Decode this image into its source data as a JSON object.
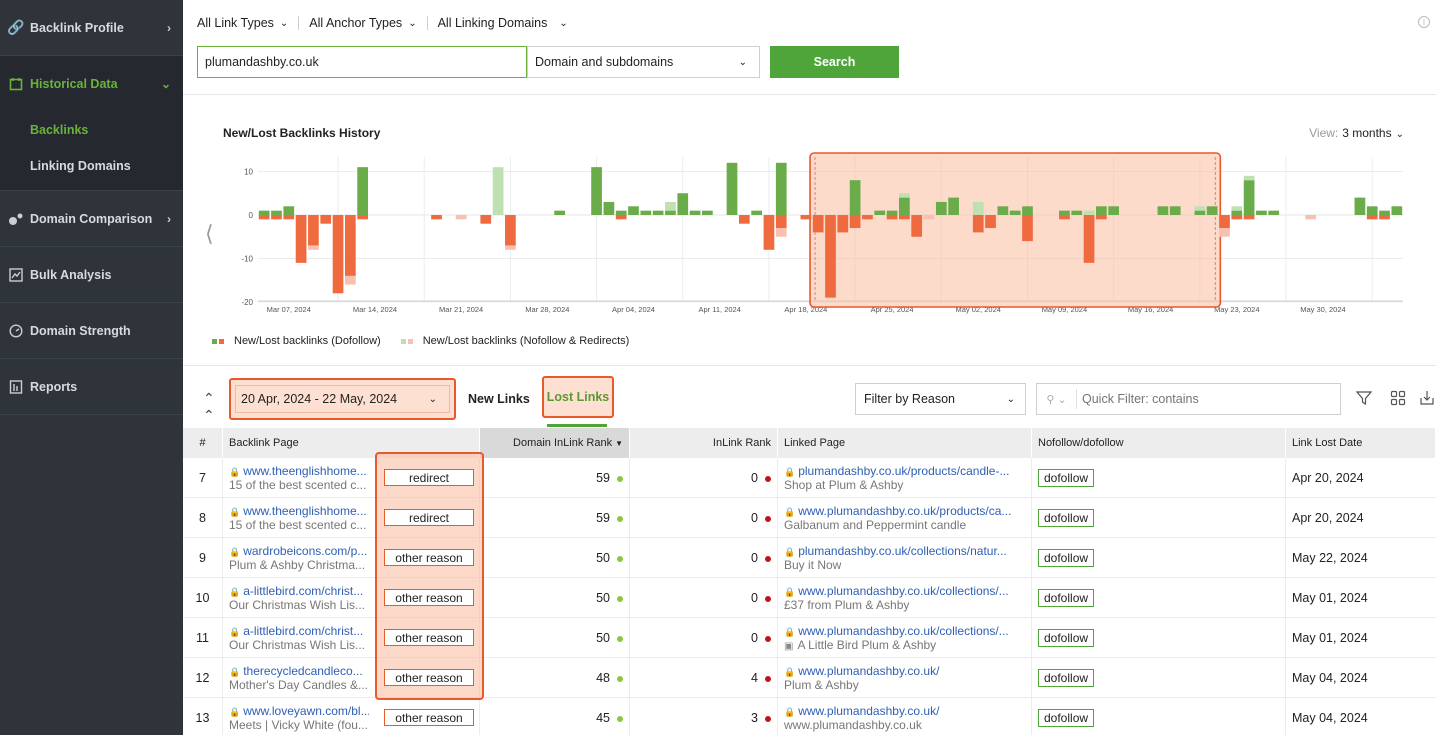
{
  "sidebar": {
    "items": [
      {
        "label": "Backlink Profile",
        "icon": "link-icon"
      },
      {
        "label": "Historical Data",
        "icon": "calendar-icon"
      },
      {
        "label": "Domain Comparison",
        "icon": "compare-icon"
      },
      {
        "label": "Bulk Analysis",
        "icon": "bulk-icon"
      },
      {
        "label": "Domain Strength",
        "icon": "gauge-icon"
      },
      {
        "label": "Reports",
        "icon": "report-icon"
      }
    ],
    "sub_items": [
      "Backlinks",
      "Linking Domains"
    ]
  },
  "filters": {
    "link_types": "All Link Types",
    "anchor_types": "All Anchor Types",
    "linking_domains": "All Linking Domains"
  },
  "search": {
    "domain": "plumandashby.co.uk",
    "scope": "Domain and subdomains",
    "button": "Search"
  },
  "chart_panel": {
    "title": "New/Lost Backlinks History",
    "view_label": "View:",
    "view_value": "3 months",
    "legend_dofollow": "New/Lost backlinks (Dofollow)",
    "legend_nofollow": "New/Lost backlinks (Nofollow & Redirects)"
  },
  "chart_data": {
    "type": "bar",
    "x_tick_labels": [
      "Mar 07, 2024",
      "Mar 14, 2024",
      "Mar 21, 2024",
      "Mar 28, 2024",
      "Apr 04, 2024",
      "Apr 11, 2024",
      "Apr 18, 2024",
      "Apr 25, 2024",
      "May 02, 2024",
      "May 09, 2024",
      "May 16, 2024",
      "May 23, 2024",
      "May 30, 2024"
    ],
    "y_ticks": [
      10,
      0,
      -10,
      -20
    ],
    "ylim": [
      -20,
      12
    ],
    "selection_start": "Apr 20, 2024",
    "selection_end": "May 22, 2024",
    "series": [
      {
        "name": "New/Lost backlinks (Dofollow)",
        "new_color": "#6aab4a",
        "lost_color": "#f06a3f"
      },
      {
        "name": "New/Lost backlinks (Nofollow & Redirects)",
        "new_color": "#bfe0b0",
        "lost_color": "#f8c0ae"
      }
    ],
    "days": [
      [
        1,
        -1,
        0,
        0
      ],
      [
        1,
        -1,
        0,
        0
      ],
      [
        2,
        -1,
        0,
        0
      ],
      [
        0,
        -11,
        0,
        0
      ],
      [
        0,
        -7,
        0,
        -1
      ],
      [
        0,
        -2,
        0,
        0
      ],
      [
        0,
        -18,
        0,
        0
      ],
      [
        0,
        -14,
        0,
        -2
      ],
      [
        11,
        -1,
        0,
        0
      ],
      [
        0,
        0,
        0,
        0
      ],
      [
        0,
        0,
        0,
        0
      ],
      [
        0,
        0,
        0,
        0
      ],
      [
        0,
        0,
        0,
        0
      ],
      [
        0,
        0,
        0,
        0
      ],
      [
        0,
        -1,
        0,
        0
      ],
      [
        0,
        0,
        0,
        0
      ],
      [
        0,
        0,
        0,
        -1
      ],
      [
        0,
        0,
        0,
        0
      ],
      [
        0,
        -2,
        0,
        0
      ],
      [
        0,
        0,
        11,
        0
      ],
      [
        0,
        -7,
        0,
        -1
      ],
      [
        0,
        0,
        0,
        0
      ],
      [
        0,
        0,
        0,
        0
      ],
      [
        0,
        0,
        0,
        0
      ],
      [
        1,
        0,
        0,
        0
      ],
      [
        0,
        0,
        0,
        0
      ],
      [
        0,
        0,
        0,
        0
      ],
      [
        11,
        0,
        0,
        0
      ],
      [
        3,
        0,
        0,
        0
      ],
      [
        1,
        -1,
        0,
        0
      ],
      [
        2,
        0,
        0,
        0
      ],
      [
        1,
        0,
        0,
        0
      ],
      [
        1,
        0,
        0,
        0
      ],
      [
        1,
        0,
        2,
        0
      ],
      [
        5,
        0,
        0,
        0
      ],
      [
        1,
        0,
        0,
        0
      ],
      [
        1,
        0,
        0,
        0
      ],
      [
        0,
        0,
        0,
        0
      ],
      [
        12,
        0,
        0,
        0
      ],
      [
        0,
        -2,
        0,
        0
      ],
      [
        1,
        0,
        0,
        0
      ],
      [
        0,
        -8,
        0,
        0
      ],
      [
        12,
        -3,
        0,
        -2
      ],
      [
        0,
        0,
        0,
        0
      ],
      [
        0,
        -1,
        0,
        0
      ],
      [
        0,
        -4,
        0,
        0
      ],
      [
        0,
        -19,
        0,
        0
      ],
      [
        0,
        -4,
        0,
        0
      ],
      [
        8,
        -3,
        0,
        0
      ],
      [
        0,
        -1,
        0,
        0
      ],
      [
        1,
        0,
        0,
        0
      ],
      [
        1,
        -1,
        0,
        0
      ],
      [
        4,
        -1,
        1,
        0
      ],
      [
        0,
        -5,
        0,
        0
      ],
      [
        0,
        0,
        0,
        -1
      ],
      [
        3,
        0,
        0,
        0
      ],
      [
        4,
        0,
        0,
        0
      ],
      [
        0,
        0,
        0,
        0
      ],
      [
        0,
        -4,
        3,
        0
      ],
      [
        0,
        -3,
        0,
        0
      ],
      [
        2,
        0,
        0,
        0
      ],
      [
        1,
        0,
        0,
        0
      ],
      [
        2,
        -6,
        0,
        0
      ],
      [
        0,
        0,
        0,
        0
      ],
      [
        0,
        0,
        0,
        0
      ],
      [
        1,
        -1,
        0,
        0
      ],
      [
        1,
        0,
        0,
        0
      ],
      [
        0,
        -11,
        1,
        0
      ],
      [
        2,
        -1,
        0,
        0
      ],
      [
        2,
        0,
        0,
        0
      ],
      [
        0,
        0,
        0,
        0
      ],
      [
        0,
        0,
        0,
        0
      ],
      [
        0,
        0,
        0,
        0
      ],
      [
        2,
        0,
        0,
        0
      ],
      [
        2,
        0,
        0,
        0
      ],
      [
        0,
        0,
        0,
        0
      ],
      [
        1,
        0,
        1,
        0
      ],
      [
        2,
        0,
        0,
        0
      ],
      [
        0,
        -3,
        0,
        -2
      ],
      [
        1,
        -1,
        1,
        0
      ],
      [
        8,
        -1,
        1,
        0
      ],
      [
        1,
        0,
        0,
        0
      ],
      [
        1,
        0,
        0,
        0
      ],
      [
        0,
        0,
        0,
        0
      ],
      [
        0,
        0,
        0,
        0
      ],
      [
        0,
        0,
        0,
        -1
      ],
      [
        0,
        0,
        0,
        0
      ],
      [
        0,
        0,
        0,
        0
      ],
      [
        0,
        0,
        0,
        0
      ],
      [
        4,
        0,
        0,
        0
      ],
      [
        2,
        -1,
        0,
        0
      ],
      [
        1,
        -1,
        0,
        0
      ],
      [
        2,
        0,
        0,
        0
      ]
    ]
  },
  "table_controls": {
    "date_range": "20 Apr, 2024 - 22 May, 2024",
    "tab_new": "New Links",
    "tab_lost": "Lost Links",
    "filter_reason": "Filter by Reason",
    "quick_filter_placeholder": "Quick Filter: contains"
  },
  "columns": {
    "num": "#",
    "backlink_page": "Backlink Page",
    "domain_inlink_rank": "Domain InLink Rank",
    "inlink_rank": "InLink Rank",
    "linked_page": "Linked Page",
    "nofollow": "Nofollow/dofollow",
    "lost_date": "Link Lost Date"
  },
  "status_colors": {
    "green": "#8cc63f",
    "red": "#c0161a"
  },
  "rows": [
    {
      "num": "7",
      "bl_url": "www.theenglishhome...",
      "bl_title": "15 of the best scented c...",
      "reason": "redirect",
      "dir": "59",
      "ir": "0",
      "lp_url": "plumandashby.co.uk/products/candle-...",
      "lp_sub": "Shop at Plum & Ashby",
      "lp_img": false,
      "follow": "dofollow",
      "date": "Apr 20, 2024"
    },
    {
      "num": "8",
      "bl_url": "www.theenglishhome...",
      "bl_title": "15 of the best scented c...",
      "reason": "redirect",
      "dir": "59",
      "ir": "0",
      "lp_url": "www.plumandashby.co.uk/products/ca...",
      "lp_sub": "Galbanum and Peppermint candle",
      "lp_img": false,
      "follow": "dofollow",
      "date": "Apr 20, 2024"
    },
    {
      "num": "9",
      "bl_url": "wardrobeicons.com/p...",
      "bl_title": "Plum & Ashby Christma...",
      "reason": "other reason",
      "dir": "50",
      "ir": "0",
      "lp_url": "plumandashby.co.uk/collections/natur...",
      "lp_sub": "Buy it Now",
      "lp_img": false,
      "follow": "dofollow",
      "date": "May 22, 2024"
    },
    {
      "num": "10",
      "bl_url": "a-littlebird.com/christ...",
      "bl_title": "Our Christmas Wish Lis...",
      "reason": "other reason",
      "dir": "50",
      "ir": "0",
      "lp_url": "www.plumandashby.co.uk/collections/...",
      "lp_sub": "£37 from Plum & Ashby",
      "lp_img": false,
      "follow": "dofollow",
      "date": "May 01, 2024"
    },
    {
      "num": "11",
      "bl_url": "a-littlebird.com/christ...",
      "bl_title": "Our Christmas Wish Lis...",
      "reason": "other reason",
      "dir": "50",
      "ir": "0",
      "lp_url": "www.plumandashby.co.uk/collections/...",
      "lp_sub": "A Little Bird Plum & Ashby",
      "lp_img": true,
      "follow": "dofollow",
      "date": "May 01, 2024"
    },
    {
      "num": "12",
      "bl_url": "therecycledcandleco...",
      "bl_title": "Mother's Day Candles &...",
      "reason": "other reason",
      "dir": "48",
      "ir": "4",
      "lp_url": "www.plumandashby.co.uk/",
      "lp_sub": "Plum & Ashby",
      "lp_img": false,
      "follow": "dofollow",
      "date": "May 04, 2024"
    },
    {
      "num": "13",
      "bl_url": "www.loveyawn.com/bl...",
      "bl_title": "Meets | Vicky White (fou...",
      "reason": "other reason",
      "dir": "45",
      "ir": "3",
      "lp_url": "www.plumandashby.co.uk/",
      "lp_sub": "www.plumandashby.co.uk",
      "lp_img": false,
      "follow": "dofollow",
      "date": "May 04, 2024"
    }
  ]
}
